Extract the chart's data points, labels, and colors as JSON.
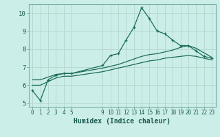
{
  "xlabel": "Humidex (Indice chaleur)",
  "bg_color": "#cceee8",
  "grid_color": "#b8d8d2",
  "line_color": "#1a6b5a",
  "xlim": [
    -0.5,
    23.5
  ],
  "ylim": [
    4.8,
    10.5
  ],
  "xticks": [
    0,
    1,
    2,
    3,
    4,
    5,
    9,
    10,
    11,
    12,
    13,
    14,
    15,
    16,
    17,
    18,
    19,
    20,
    21,
    22,
    23
  ],
  "yticks": [
    5,
    6,
    7,
    8,
    9,
    10
  ],
  "line1_x": [
    0,
    1,
    2,
    3,
    4,
    5,
    9,
    10,
    11,
    12,
    13,
    14,
    15,
    16,
    17,
    18,
    19,
    20,
    21,
    22,
    23
  ],
  "line1_y": [
    5.7,
    5.15,
    6.3,
    6.55,
    6.65,
    6.65,
    7.1,
    7.65,
    7.75,
    8.5,
    9.2,
    10.3,
    9.7,
    9.0,
    8.85,
    8.5,
    8.2,
    8.2,
    7.9,
    7.6,
    7.5
  ],
  "line2_x": [
    0,
    1,
    2,
    3,
    4,
    5,
    9,
    10,
    11,
    12,
    13,
    14,
    15,
    16,
    17,
    18,
    19,
    20,
    21,
    22,
    23
  ],
  "line2_y": [
    6.3,
    6.3,
    6.45,
    6.6,
    6.65,
    6.65,
    6.95,
    7.05,
    7.15,
    7.3,
    7.45,
    7.6,
    7.7,
    7.75,
    7.85,
    7.95,
    8.1,
    8.2,
    8.05,
    7.8,
    7.55
  ],
  "line3_x": [
    0,
    1,
    2,
    3,
    4,
    5,
    9,
    10,
    11,
    12,
    13,
    14,
    15,
    16,
    17,
    18,
    19,
    20,
    21,
    22,
    23
  ],
  "line3_y": [
    6.0,
    6.0,
    6.2,
    6.4,
    6.5,
    6.5,
    6.75,
    6.85,
    6.95,
    7.05,
    7.15,
    7.25,
    7.35,
    7.4,
    7.5,
    7.55,
    7.6,
    7.65,
    7.6,
    7.5,
    7.4
  ]
}
